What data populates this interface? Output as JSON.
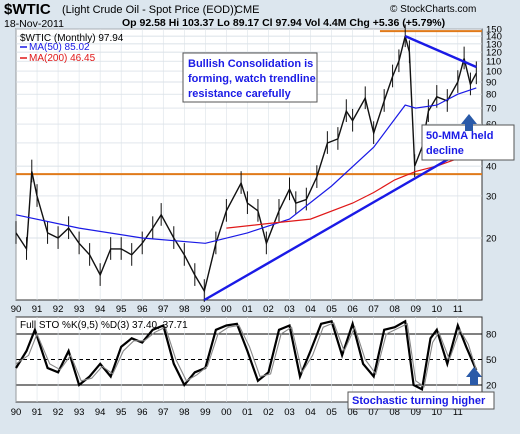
{
  "header": {
    "symbol": "$WTIC",
    "description": "(Light Crude Oil - Spot Price (EOD))",
    "exchange": "CME",
    "date": "18-Nov-2011",
    "ohlc": "Op 92.58  Hi 103.37  Lo 89.17  Cl 97.94  Vol 4.4M  Chg +5.36 (+5.79%)",
    "brand": "© StockCharts.com"
  },
  "colors": {
    "price": "#111111",
    "ma50": "#1a1ae6",
    "ma200": "#e01818",
    "trendline": "#1a1ae6",
    "level": "#e07a1a",
    "annotation": "#1a1ae6",
    "panel_bg": "#ffffff",
    "arrow": "#2a5aa8"
  },
  "legend": {
    "main": "$WTIC (Monthly) 97.94",
    "ma50": "MA(50) 85.02",
    "ma200": "MA(200) 46.45",
    "stoch": "Full STO %K(9,5) %D(3) 37.40, 37.71"
  },
  "annotations": {
    "consolidation": [
      "Bullish Consolidation is",
      "forming, watch trendline",
      "resistance carefully"
    ],
    "mma_held": [
      "50-MMA held",
      "decline"
    ],
    "stochastic": "Stochastic turning higher"
  },
  "chart_data": [
    {
      "type": "line",
      "title": "$WTIC (Monthly)",
      "scale": "log",
      "ylim": [
        11,
        150
      ],
      "x_label_years": [
        "90",
        "91",
        "92",
        "93",
        "94",
        "95",
        "96",
        "97",
        "98",
        "99",
        "00",
        "01",
        "02",
        "03",
        "04",
        "05",
        "06",
        "07",
        "08",
        "09",
        "10",
        "11"
      ],
      "y_ticks": [
        150,
        140,
        130,
        120,
        110,
        100,
        90,
        80,
        70,
        60,
        50,
        40,
        30,
        20
      ],
      "series": [
        {
          "name": "$WTIC",
          "x": [
            1990.0,
            1990.5,
            1990.75,
            1991.0,
            1991.5,
            1992.0,
            1992.5,
            1993.0,
            1993.5,
            1994.0,
            1994.5,
            1995.0,
            1995.5,
            1996.0,
            1996.5,
            1996.9,
            1997.5,
            1998.0,
            1998.5,
            1998.95,
            1999.5,
            2000.0,
            2000.7,
            2001.0,
            2001.5,
            2001.9,
            2002.5,
            2003.0,
            2003.3,
            2003.8,
            2004.3,
            2004.8,
            2005.3,
            2005.7,
            2006.0,
            2006.6,
            2007.0,
            2007.5,
            2007.9,
            2008.2,
            2008.5,
            2008.7,
            2008.95,
            2009.3,
            2009.6,
            2010.0,
            2010.5,
            2011.0,
            2011.3,
            2011.6,
            2011.88
          ],
          "values": [
            21,
            18,
            38,
            30,
            21,
            20,
            22,
            19,
            17,
            14,
            18,
            18,
            17,
            19,
            22,
            25,
            20,
            17,
            14,
            12,
            19,
            26,
            34,
            28,
            26,
            19,
            26,
            32,
            28,
            29,
            36,
            50,
            52,
            68,
            62,
            77,
            55,
            75,
            95,
            110,
            140,
            120,
            40,
            48,
            68,
            78,
            75,
            90,
            113,
            88,
            97.94
          ]
        },
        {
          "name": "MA(50)",
          "x": [
            1990.0,
            1993.0,
            1996.0,
            1999.0,
            2001.0,
            2003.0,
            2005.0,
            2007.0,
            2008.5,
            2009.0,
            2010.0,
            2011.0,
            2011.88
          ],
          "values": [
            25,
            22,
            20,
            19,
            21,
            24,
            33,
            48,
            72,
            70,
            72,
            80,
            85.02
          ]
        },
        {
          "name": "MA(200)",
          "x": [
            2000.0,
            2002.0,
            2004.0,
            2006.0,
            2007.0,
            2008.0,
            2009.0,
            2010.0,
            2011.0,
            2011.88
          ],
          "values": [
            22,
            23,
            24,
            28,
            31,
            35,
            38,
            40,
            43,
            46.45
          ]
        }
      ],
      "levels": [
        37,
        147
      ],
      "trendlines": [
        {
          "x": [
            1998.95,
            2011.88
          ],
          "values": [
            11,
            50
          ]
        },
        {
          "x": [
            2008.5,
            2011.88
          ],
          "values": [
            140,
            104
          ]
        }
      ]
    },
    {
      "type": "line",
      "title": "Full STO %K(9,5) %D(3)",
      "ylim": [
        0,
        100
      ],
      "y_ticks": [
        80,
        50,
        20
      ],
      "levels": [
        80,
        50,
        20
      ],
      "series": [
        {
          "name": "%K",
          "x": [
            1990.0,
            1990.5,
            1990.9,
            1991.5,
            1992.0,
            1992.5,
            1993.0,
            1993.5,
            1994.0,
            1994.5,
            1995.0,
            1995.5,
            1996.0,
            1996.5,
            1997.0,
            1997.5,
            1998.0,
            1998.5,
            1999.0,
            1999.5,
            2000.0,
            2000.5,
            2001.0,
            2001.5,
            2002.0,
            2002.5,
            2003.0,
            2003.5,
            2004.0,
            2004.5,
            2005.0,
            2005.5,
            2006.0,
            2006.5,
            2007.0,
            2007.5,
            2008.0,
            2008.5,
            2008.9,
            2009.3,
            2009.7,
            2010.0,
            2010.5,
            2011.0,
            2011.4,
            2011.88
          ],
          "values": [
            40,
            60,
            85,
            40,
            35,
            60,
            20,
            30,
            45,
            30,
            65,
            75,
            70,
            85,
            90,
            45,
            20,
            35,
            40,
            85,
            90,
            92,
            60,
            25,
            35,
            85,
            90,
            30,
            60,
            92,
            95,
            55,
            92,
            45,
            30,
            85,
            88,
            95,
            20,
            15,
            75,
            85,
            45,
            90,
            65,
            37.4
          ]
        },
        {
          "name": "%D",
          "x": [
            1990.0,
            1990.6,
            1991.0,
            1991.6,
            1992.1,
            1992.6,
            1993.1,
            1993.6,
            1994.1,
            1994.6,
            1995.1,
            1995.6,
            1996.1,
            1996.6,
            1997.1,
            1997.6,
            1998.1,
            1998.6,
            1999.1,
            1999.6,
            2000.1,
            2000.6,
            2001.1,
            2001.6,
            2002.1,
            2002.6,
            2003.1,
            2003.6,
            2004.1,
            2004.6,
            2005.1,
            2005.6,
            2006.1,
            2006.6,
            2007.1,
            2007.6,
            2008.1,
            2008.6,
            2009.0,
            2009.4,
            2009.8,
            2010.1,
            2010.6,
            2011.1,
            2011.5,
            2011.88
          ],
          "values": [
            45,
            55,
            80,
            45,
            38,
            55,
            25,
            28,
            42,
            33,
            60,
            72,
            72,
            82,
            88,
            50,
            25,
            32,
            42,
            80,
            88,
            90,
            65,
            30,
            33,
            80,
            88,
            35,
            55,
            88,
            93,
            60,
            88,
            50,
            33,
            80,
            86,
            92,
            25,
            18,
            70,
            82,
            50,
            85,
            68,
            37.71
          ]
        }
      ]
    }
  ]
}
